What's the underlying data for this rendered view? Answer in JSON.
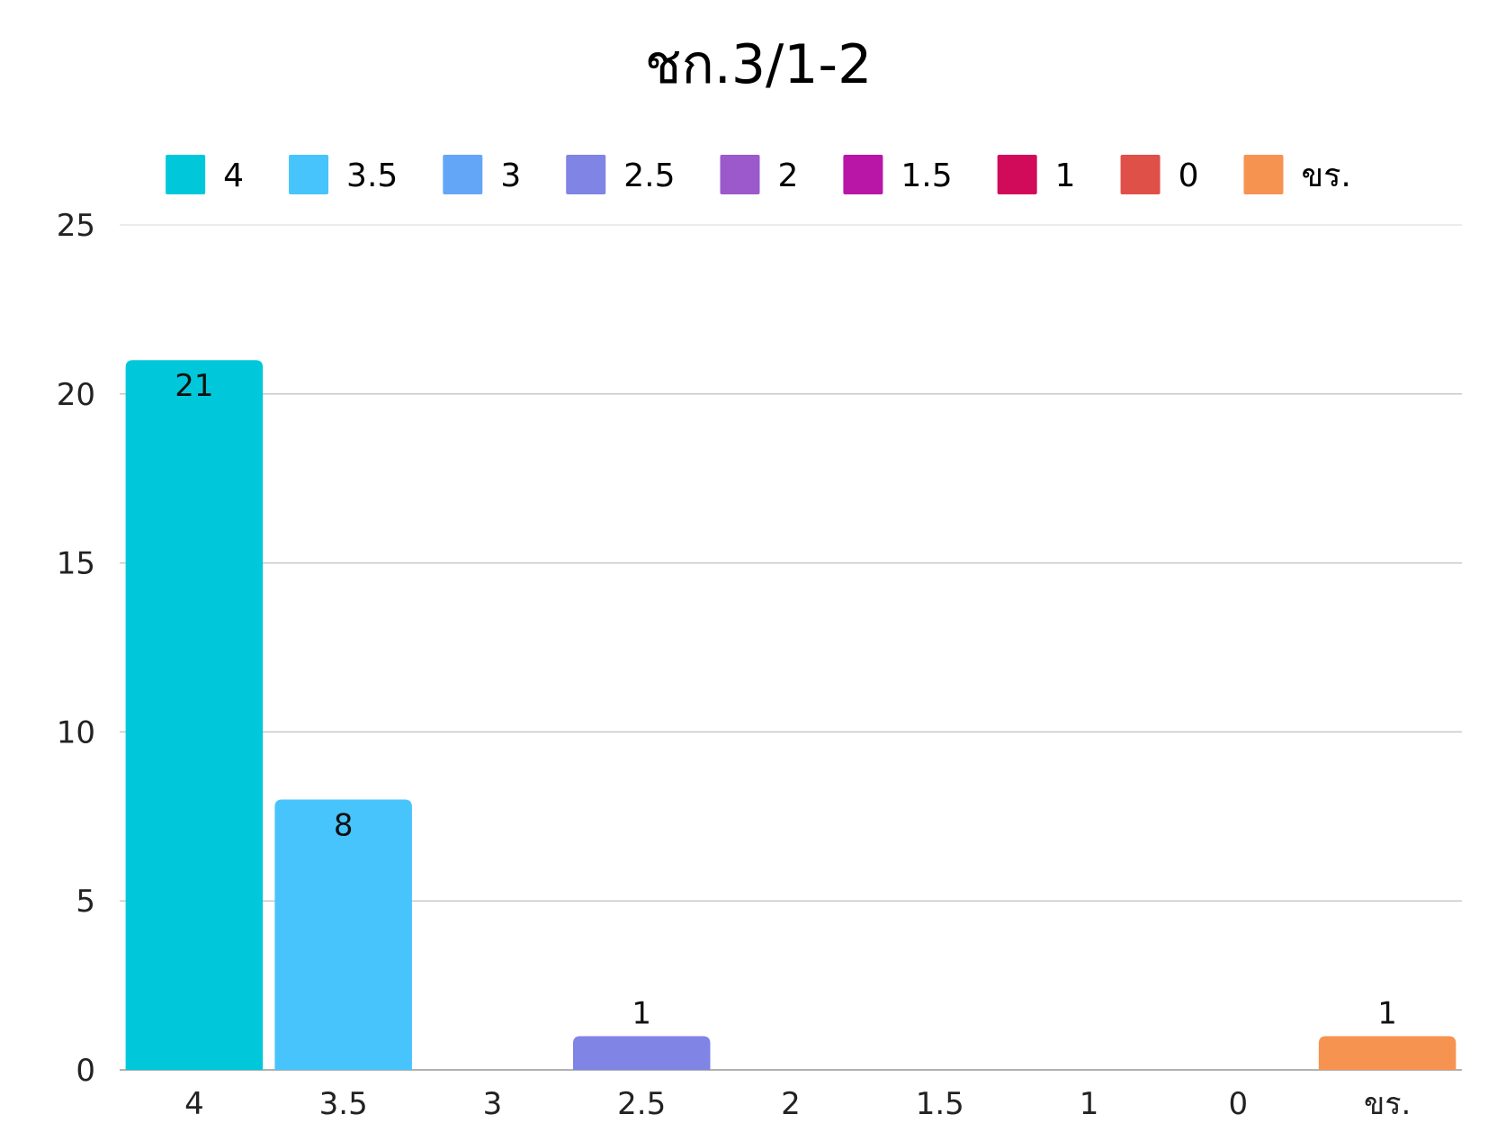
{
  "chart_data": {
    "type": "bar",
    "title": "ชก.3/1-2",
    "xlabel": "",
    "ylabel": "",
    "categories": [
      "4",
      "3.5",
      "3",
      "2.5",
      "2",
      "1.5",
      "1",
      "0",
      "ขร."
    ],
    "values": [
      21,
      8,
      0,
      1,
      0,
      0,
      0,
      0,
      1
    ],
    "data_labels": [
      "21",
      "8",
      "",
      "1",
      "",
      "",
      "",
      "",
      "1"
    ],
    "colors": [
      "#00C8DA",
      "#48C4FC",
      "#63A6F8",
      "#7F84E5",
      "#9B59CC",
      "#B916A8",
      "#D20A5A",
      "#DF5048",
      "#F69351"
    ],
    "ylim": [
      0,
      25
    ],
    "yticks": [
      0,
      5,
      10,
      15,
      20,
      25
    ],
    "grid": true,
    "legend_position": "top",
    "legend": [
      {
        "label": "4",
        "color": "#00C8DA"
      },
      {
        "label": "3.5",
        "color": "#48C4FC"
      },
      {
        "label": "3",
        "color": "#63A6F8"
      },
      {
        "label": "2.5",
        "color": "#7F84E5"
      },
      {
        "label": "2",
        "color": "#9B59CC"
      },
      {
        "label": "1.5",
        "color": "#B916A8"
      },
      {
        "label": "1",
        "color": "#D20A5A"
      },
      {
        "label": "0",
        "color": "#DF5048"
      },
      {
        "label": "ขร.",
        "color": "#F69351"
      }
    ]
  }
}
